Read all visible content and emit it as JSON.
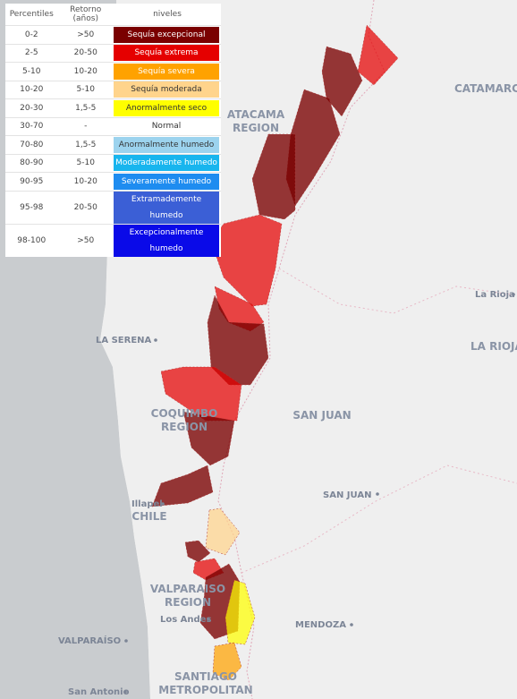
{
  "legend": {
    "headers": [
      "Percentiles",
      "Retorno (años)",
      "niveles"
    ],
    "rows": [
      {
        "percentile": "0-2",
        "retorno": ">50",
        "nivel": "Sequía excepcional",
        "color": "#7a0000",
        "text_color": "#ffffff"
      },
      {
        "percentile": "2-5",
        "retorno": "20-50",
        "nivel": "Sequía extrema",
        "color": "#e50000",
        "text_color": "#ffffff"
      },
      {
        "percentile": "5-10",
        "retorno": "10-20",
        "nivel": "Sequía severa",
        "color": "#ffa200",
        "text_color": "#ffffff"
      },
      {
        "percentile": "10-20",
        "retorno": "5-10",
        "nivel": "Sequía moderada",
        "color": "#ffd48c",
        "text_color": "#333333"
      },
      {
        "percentile": "20-30",
        "retorno": "1,5-5",
        "nivel": "Anormalmente seco",
        "color": "#ffff00",
        "text_color": "#333333"
      },
      {
        "percentile": "30-70",
        "retorno": "-",
        "nivel": "Normal",
        "color": "#ffffff",
        "text_color": "#333333"
      },
      {
        "percentile": "70-80",
        "retorno": "1,5-5",
        "nivel": "Anormalmente humedo",
        "color": "#9cd3ee",
        "text_color": "#333333"
      },
      {
        "percentile": "80-90",
        "retorno": "5-10",
        "nivel": "Moderadamente humedo",
        "color": "#18b5ee",
        "text_color": "#ffffff"
      },
      {
        "percentile": "90-95",
        "retorno": "10-20",
        "nivel": "Severamente humedo",
        "color": "#1e8cf0",
        "text_color": "#ffffff"
      },
      {
        "percentile": "95-98",
        "retorno": "20-50",
        "nivel": "Extramademente humedo",
        "color": "#3b5fd6",
        "text_color": "#ffffff"
      },
      {
        "percentile": "98-100",
        "retorno": ">50",
        "nivel": "Excepcionalmente humedo",
        "color": "#0a0ae8",
        "text_color": "#ffffff"
      }
    ]
  },
  "map": {
    "regions": [
      {
        "name": "ATACAMA",
        "suffix": "REGION"
      },
      {
        "name": "COQUIMBO",
        "suffix": "REGION"
      },
      {
        "name": "VALPARAISO",
        "suffix": "REGION"
      },
      {
        "name": "SANTIAGO",
        "suffix": "METROPOLITAN"
      }
    ],
    "provinces": [
      "CATAMARCA",
      "LA RIOJA",
      "SAN JUAN",
      "CHILE"
    ],
    "cities": [
      "LA SERENA",
      "La Rioja",
      "SAN JUAN",
      "Illapel",
      "Los Andes",
      "MENDOZA",
      "VALPARAÍSO",
      "San Antonio"
    ],
    "colors": {
      "ocean": "#c9cccf",
      "land": "#efefef"
    }
  }
}
